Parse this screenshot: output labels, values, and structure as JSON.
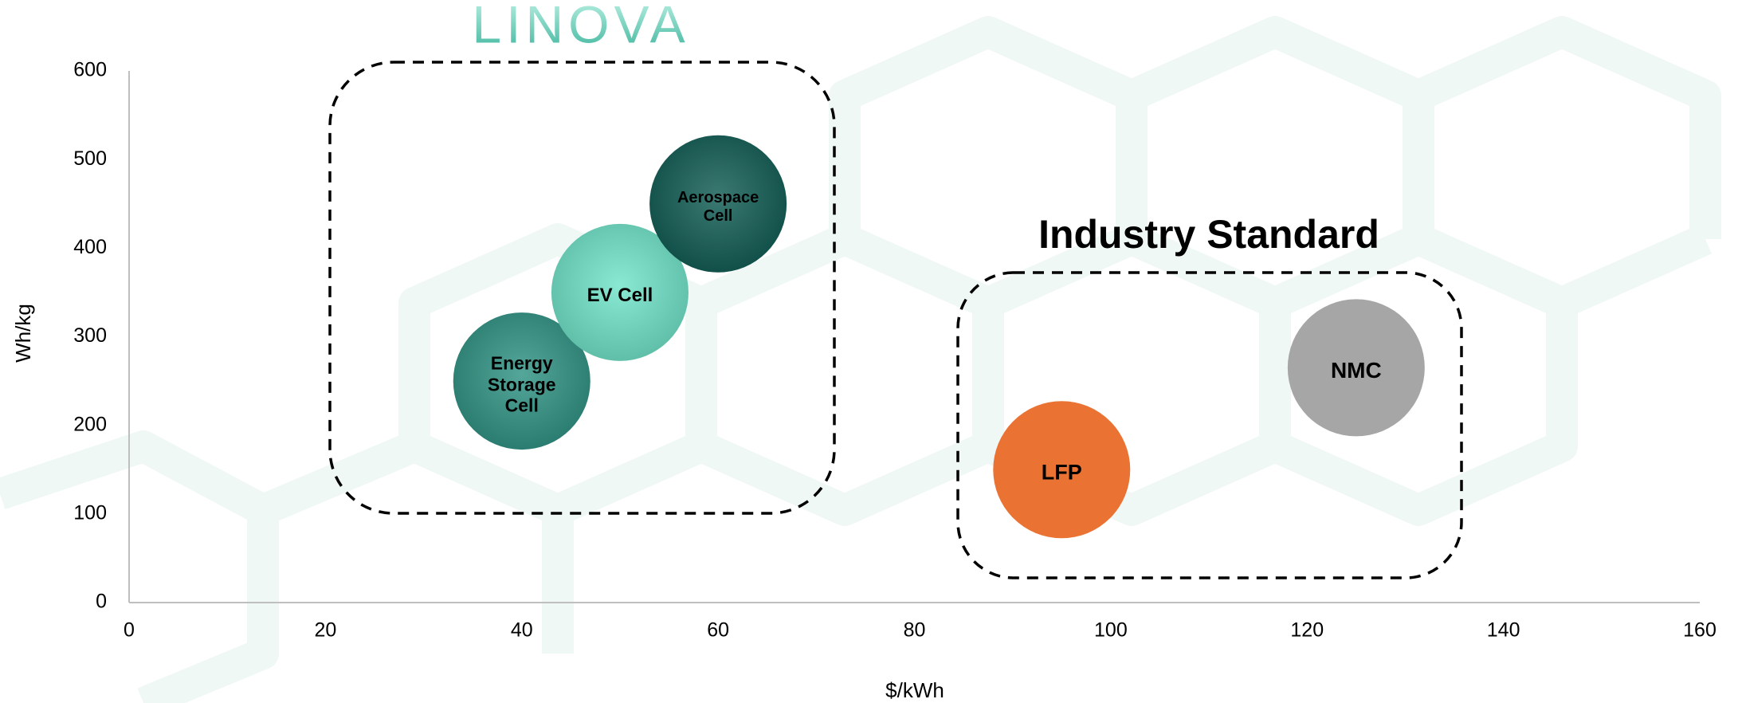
{
  "logo": "LINOVA",
  "chart_data": {
    "type": "scatter",
    "xlabel": "$/kWh",
    "ylabel": "Wh/kg",
    "annotation": "Industry Standard",
    "xlim": [
      0,
      160
    ],
    "xticks": [
      0,
      20,
      40,
      60,
      80,
      100,
      120,
      140,
      160
    ],
    "ylim": [
      0,
      600
    ],
    "yticks": [
      0,
      100,
      200,
      300,
      400,
      500,
      600
    ],
    "grid": false,
    "series": [
      {
        "name": "Energy Storage Cell",
        "color": "#2f9384",
        "x": [
          40
        ],
        "values": [
          250
        ]
      },
      {
        "name": "EV Cell",
        "color": "#70e4c9",
        "x": [
          50
        ],
        "values": [
          350
        ]
      },
      {
        "name": "Aerospace Cell",
        "color": "#105c54",
        "x": [
          60
        ],
        "values": [
          450
        ]
      },
      {
        "name": "LFP",
        "color": "#ea7333",
        "x": [
          95
        ],
        "values": [
          150
        ]
      },
      {
        "name": "NMC",
        "color": "#a6a6a6",
        "x": [
          125
        ],
        "values": [
          265
        ]
      }
    ]
  }
}
